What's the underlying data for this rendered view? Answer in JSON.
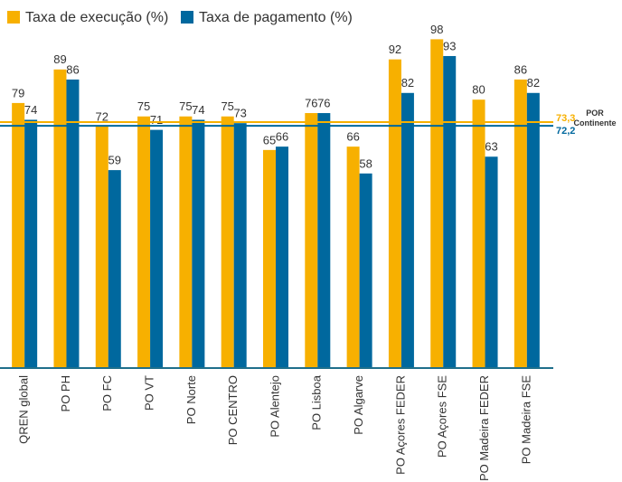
{
  "chart_data": {
    "type": "bar",
    "categories": [
      "QREN global",
      "PO PH",
      "PO FC",
      "PO VT",
      "PO Norte",
      "PO CENTRO",
      "PO Alentejo",
      "PO Lisboa",
      "PO Algarve",
      "PO Açores FEDER",
      "PO Açores FSE",
      "PO Madeira FEDER",
      "PO Madeira FSE"
    ],
    "series": [
      {
        "name": "Taxa de execução (%)",
        "color": "#f7b000",
        "values": [
          79,
          89,
          72,
          75,
          75,
          75,
          65,
          76,
          66,
          92,
          98,
          80,
          86
        ]
      },
      {
        "name": "Taxa de pagamento (%)",
        "color": "#00689e",
        "values": [
          74,
          86,
          59,
          71,
          74,
          73,
          66,
          76,
          58,
          82,
          93,
          63,
          82
        ]
      }
    ],
    "ylim": [
      0,
      100
    ],
    "reference_lines": [
      {
        "value": 73.3,
        "label": "73,3",
        "color": "#f7b000"
      },
      {
        "value": 72.2,
        "label": "72,2",
        "color": "#00689e"
      }
    ],
    "annotation": "POR Continente"
  }
}
